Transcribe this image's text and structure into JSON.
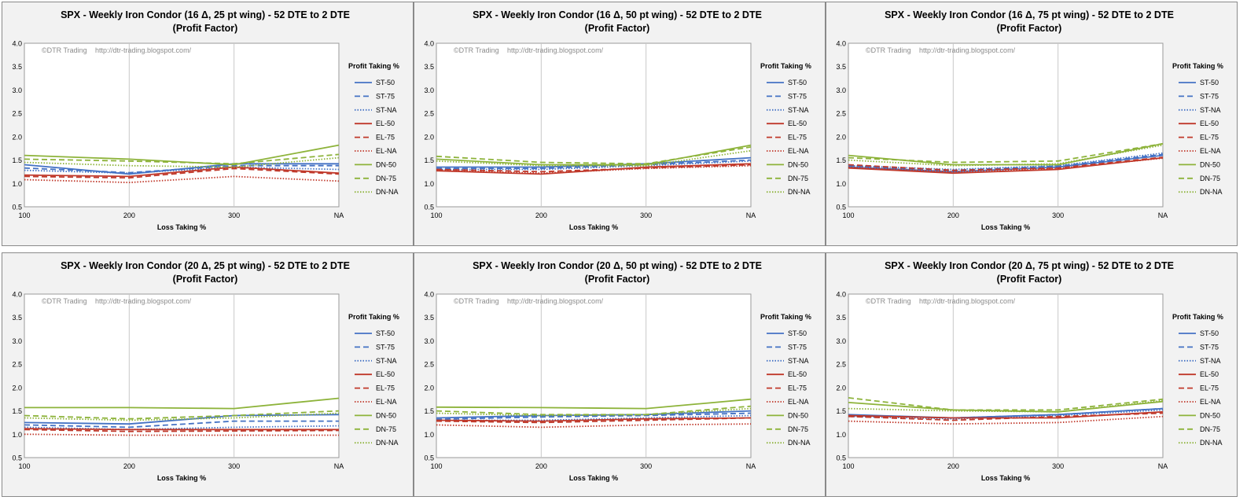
{
  "common": {
    "xlabel": "Loss Taking %",
    "legend_title": "Profit Taking %",
    "watermark_left": "©DTR Trading",
    "watermark_right": "http://dtr-trading.blogspot.com/",
    "title_line2": "(Profit Factor)",
    "categories": [
      "100",
      "200",
      "300",
      "NA"
    ],
    "ylim": [
      0.5,
      4.0
    ],
    "yticks": [
      "0.5",
      "1.0",
      "1.5",
      "2.0",
      "2.5",
      "3.0",
      "3.5",
      "4.0"
    ],
    "grid": "vertical",
    "legend_position": "right"
  },
  "series_style": [
    {
      "name": "ST-50",
      "color": "#4472c4",
      "dash": "solid"
    },
    {
      "name": "ST-75",
      "color": "#4472c4",
      "dash": "dashed"
    },
    {
      "name": "ST-NA",
      "color": "#4472c4",
      "dash": "dotted"
    },
    {
      "name": "EL-50",
      "color": "#c0392b",
      "dash": "solid"
    },
    {
      "name": "EL-75",
      "color": "#c0392b",
      "dash": "dashed"
    },
    {
      "name": "EL-NA",
      "color": "#c0392b",
      "dash": "dotted"
    },
    {
      "name": "DN-50",
      "color": "#8db33a",
      "dash": "solid"
    },
    {
      "name": "DN-75",
      "color": "#8db33a",
      "dash": "dashed"
    },
    {
      "name": "DN-NA",
      "color": "#8db33a",
      "dash": "dotted"
    }
  ],
  "chart_data": [
    {
      "type": "line",
      "title": "SPX - Weekly Iron Condor (16 Δ, 25 pt wing) - 52 DTE to 2 DTE",
      "series": [
        {
          "name": "ST-50",
          "values": [
            1.4,
            1.2,
            1.42,
            1.42
          ]
        },
        {
          "name": "ST-75",
          "values": [
            1.33,
            1.23,
            1.38,
            1.38
          ]
        },
        {
          "name": "ST-NA",
          "values": [
            1.28,
            1.22,
            1.35,
            1.3
          ]
        },
        {
          "name": "EL-50",
          "values": [
            1.18,
            1.15,
            1.35,
            1.22
          ]
        },
        {
          "name": "EL-75",
          "values": [
            1.15,
            1.12,
            1.32,
            1.2
          ]
        },
        {
          "name": "EL-NA",
          "values": [
            1.08,
            1.02,
            1.15,
            1.05
          ]
        },
        {
          "name": "DN-50",
          "values": [
            1.6,
            1.52,
            1.4,
            1.82
          ]
        },
        {
          "name": "DN-75",
          "values": [
            1.52,
            1.48,
            1.42,
            1.62
          ]
        },
        {
          "name": "DN-NA",
          "values": [
            1.45,
            1.38,
            1.35,
            1.55
          ]
        }
      ]
    },
    {
      "type": "line",
      "title": "SPX - Weekly Iron Condor (16 Δ, 50 pt wing) - 52 DTE to 2 DTE",
      "series": [
        {
          "name": "ST-50",
          "values": [
            1.35,
            1.35,
            1.42,
            1.55
          ]
        },
        {
          "name": "ST-75",
          "values": [
            1.32,
            1.32,
            1.4,
            1.5
          ]
        },
        {
          "name": "ST-NA",
          "values": [
            1.3,
            1.3,
            1.38,
            1.48
          ]
        },
        {
          "name": "EL-50",
          "values": [
            1.27,
            1.2,
            1.35,
            1.42
          ]
        },
        {
          "name": "EL-75",
          "values": [
            1.3,
            1.25,
            1.33,
            1.4
          ]
        },
        {
          "name": "EL-NA",
          "values": [
            1.28,
            1.22,
            1.32,
            1.38
          ]
        },
        {
          "name": "DN-50",
          "values": [
            1.52,
            1.4,
            1.4,
            1.82
          ]
        },
        {
          "name": "DN-75",
          "values": [
            1.58,
            1.45,
            1.42,
            1.78
          ]
        },
        {
          "name": "DN-NA",
          "values": [
            1.48,
            1.38,
            1.38,
            1.7
          ]
        }
      ]
    },
    {
      "type": "line",
      "title": "SPX - Weekly Iron Condor (16 Δ, 75 pt wing) - 52 DTE to 2 DTE",
      "series": [
        {
          "name": "ST-50",
          "values": [
            1.35,
            1.25,
            1.35,
            1.6
          ]
        },
        {
          "name": "ST-75",
          "values": [
            1.37,
            1.28,
            1.37,
            1.62
          ]
        },
        {
          "name": "ST-NA",
          "values": [
            1.38,
            1.3,
            1.38,
            1.65
          ]
        },
        {
          "name": "EL-50",
          "values": [
            1.33,
            1.22,
            1.3,
            1.55
          ]
        },
        {
          "name": "EL-75",
          "values": [
            1.4,
            1.28,
            1.33,
            1.56
          ]
        },
        {
          "name": "EL-NA",
          "values": [
            1.35,
            1.25,
            1.32,
            1.54
          ]
        },
        {
          "name": "DN-50",
          "values": [
            1.6,
            1.4,
            1.4,
            1.85
          ]
        },
        {
          "name": "DN-75",
          "values": [
            1.55,
            1.45,
            1.48,
            1.85
          ]
        },
        {
          "name": "DN-NA",
          "values": [
            1.5,
            1.38,
            1.42,
            1.82
          ]
        }
      ]
    },
    {
      "type": "line",
      "title": "SPX - Weekly Iron Condor (20 Δ, 25 pt wing) - 52 DTE to 2 DTE",
      "series": [
        {
          "name": "ST-50",
          "values": [
            1.25,
            1.22,
            1.4,
            1.42
          ]
        },
        {
          "name": "ST-75",
          "values": [
            1.2,
            1.15,
            1.28,
            1.28
          ]
        },
        {
          "name": "ST-NA",
          "values": [
            1.15,
            1.1,
            1.15,
            1.18
          ]
        },
        {
          "name": "EL-50",
          "values": [
            1.12,
            1.1,
            1.1,
            1.1
          ]
        },
        {
          "name": "EL-75",
          "values": [
            1.1,
            1.06,
            1.07,
            1.08
          ]
        },
        {
          "name": "EL-NA",
          "values": [
            1.0,
            0.98,
            0.98,
            0.98
          ]
        },
        {
          "name": "DN-50",
          "values": [
            1.57,
            1.57,
            1.55,
            1.77
          ]
        },
        {
          "name": "DN-75",
          "values": [
            1.4,
            1.33,
            1.4,
            1.5
          ]
        },
        {
          "name": "DN-NA",
          "values": [
            1.35,
            1.3,
            1.35,
            1.45
          ]
        }
      ]
    },
    {
      "type": "line",
      "title": "SPX - Weekly Iron Condor (20 Δ, 50 pt wing) - 52 DTE to 2 DTE",
      "series": [
        {
          "name": "ST-50",
          "values": [
            1.35,
            1.4,
            1.42,
            1.5
          ]
        },
        {
          "name": "ST-75",
          "values": [
            1.32,
            1.37,
            1.4,
            1.45
          ]
        },
        {
          "name": "ST-NA",
          "values": [
            1.3,
            1.3,
            1.35,
            1.4
          ]
        },
        {
          "name": "EL-50",
          "values": [
            1.3,
            1.28,
            1.33,
            1.35
          ]
        },
        {
          "name": "EL-75",
          "values": [
            1.28,
            1.25,
            1.3,
            1.35
          ]
        },
        {
          "name": "EL-NA",
          "values": [
            1.2,
            1.15,
            1.2,
            1.22
          ]
        },
        {
          "name": "DN-50",
          "values": [
            1.58,
            1.57,
            1.55,
            1.75
          ]
        },
        {
          "name": "DN-75",
          "values": [
            1.5,
            1.42,
            1.42,
            1.6
          ]
        },
        {
          "name": "DN-NA",
          "values": [
            1.45,
            1.4,
            1.42,
            1.55
          ]
        }
      ]
    },
    {
      "type": "line",
      "title": "SPX - Weekly Iron Condor (20 Δ, 75 pt wing) - 52 DTE to 2 DTE",
      "series": [
        {
          "name": "ST-50",
          "values": [
            1.42,
            1.35,
            1.42,
            1.55
          ]
        },
        {
          "name": "ST-75",
          "values": [
            1.4,
            1.35,
            1.42,
            1.55
          ]
        },
        {
          "name": "ST-NA",
          "values": [
            1.38,
            1.33,
            1.4,
            1.52
          ]
        },
        {
          "name": "EL-50",
          "values": [
            1.4,
            1.35,
            1.35,
            1.48
          ]
        },
        {
          "name": "EL-75",
          "values": [
            1.38,
            1.3,
            1.38,
            1.45
          ]
        },
        {
          "name": "EL-NA",
          "values": [
            1.28,
            1.22,
            1.25,
            1.38
          ]
        },
        {
          "name": "DN-50",
          "values": [
            1.68,
            1.52,
            1.48,
            1.7
          ]
        },
        {
          "name": "DN-75",
          "values": [
            1.78,
            1.52,
            1.52,
            1.75
          ]
        },
        {
          "name": "DN-NA",
          "values": [
            1.55,
            1.5,
            1.48,
            1.72
          ]
        }
      ]
    }
  ]
}
